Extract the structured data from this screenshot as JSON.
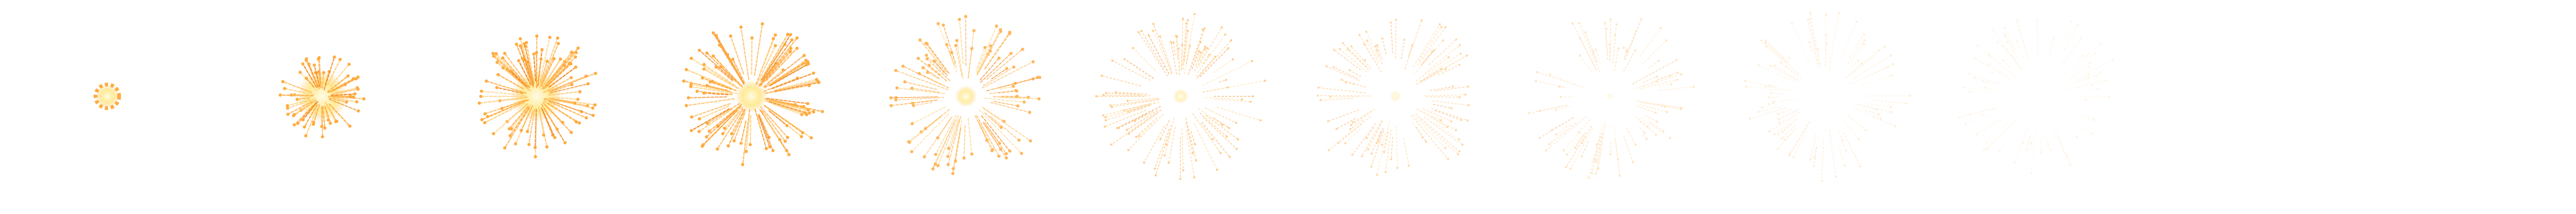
{
  "sprite_sheet": {
    "subject": "firework-burst-animation",
    "frame_count": 12,
    "colors": {
      "background": "#ffffff",
      "core": "#fffbe6",
      "core_glow": "#ffe98a",
      "spark": "#ffab40",
      "spark_light": "#ffcf7a",
      "spark_dark": "#f28c28"
    },
    "frames": [
      {
        "index": 1,
        "stage": "ignition",
        "opacity": 1.0
      },
      {
        "index": 2,
        "stage": "expanding",
        "opacity": 1.0
      },
      {
        "index": 3,
        "stage": "expanding",
        "opacity": 1.0
      },
      {
        "index": 4,
        "stage": "peak",
        "opacity": 1.0
      },
      {
        "index": 5,
        "stage": "spreading",
        "opacity": 0.85
      },
      {
        "index": 6,
        "stage": "fading",
        "opacity": 0.6
      },
      {
        "index": 7,
        "stage": "fading",
        "opacity": 0.45
      },
      {
        "index": 8,
        "stage": "fading",
        "opacity": 0.3
      },
      {
        "index": 9,
        "stage": "dissipating",
        "opacity": 0.2
      },
      {
        "index": 10,
        "stage": "dissipating",
        "opacity": 0.12
      },
      {
        "index": 11,
        "stage": "empty",
        "opacity": 0.0
      },
      {
        "index": 12,
        "stage": "empty",
        "opacity": 0.0
      }
    ]
  }
}
